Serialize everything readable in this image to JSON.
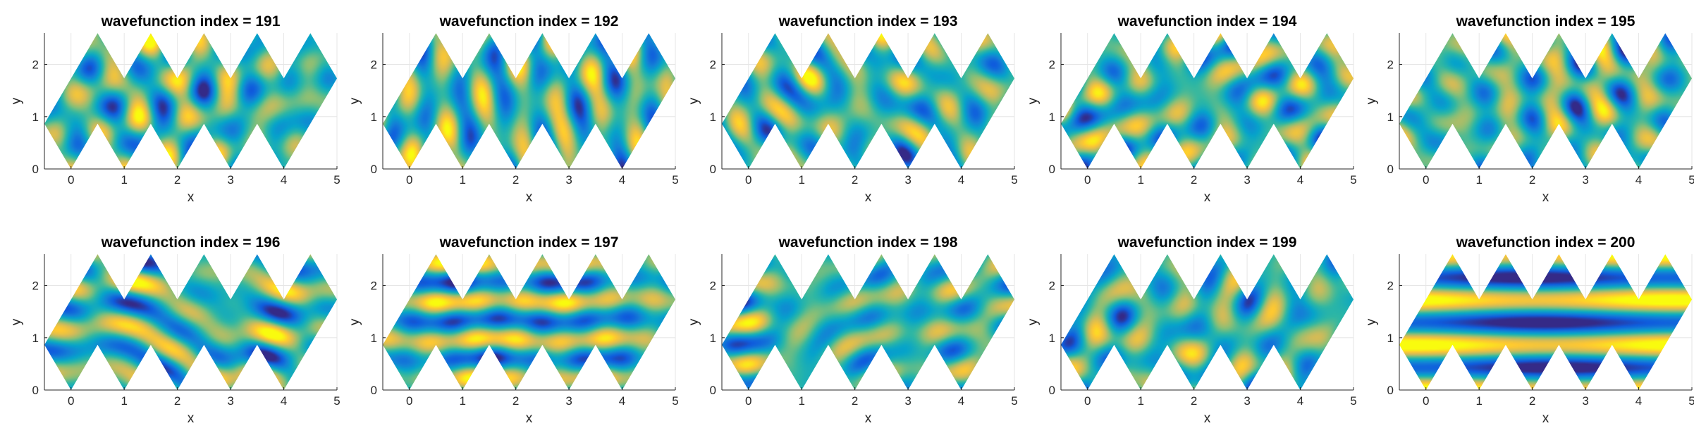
{
  "chart_data": {
    "type": "heatmap",
    "colormap": "parula",
    "colors": [
      "#352a87",
      "#0f5cdd",
      "#1481d6",
      "#06a4ca",
      "#2eb7a4",
      "#87bf77",
      "#d1bb59",
      "#fec832",
      "#f9fb0e"
    ],
    "grid": true,
    "xlabel": "x",
    "ylabel": "y",
    "xlim": [
      -0.5,
      5
    ],
    "ylim": [
      0,
      2.6
    ],
    "xticks": [
      "0",
      "1",
      "2",
      "3",
      "4",
      "5"
    ],
    "yticks": [
      "0",
      "1",
      "2"
    ],
    "domain_shape": "zigzag strip of 5 rhombi, width 5, height about 1.73",
    "panels": [
      {
        "title": "wavefunction index = 191",
        "index": 191
      },
      {
        "title": "wavefunction index = 192",
        "index": 192
      },
      {
        "title": "wavefunction index = 193",
        "index": 193
      },
      {
        "title": "wavefunction index = 194",
        "index": 194
      },
      {
        "title": "wavefunction index = 195",
        "index": 195
      },
      {
        "title": "wavefunction index = 196",
        "index": 196
      },
      {
        "title": "wavefunction index = 197",
        "index": 197
      },
      {
        "title": "wavefunction index = 198",
        "index": 198
      },
      {
        "title": "wavefunction index = 199",
        "index": 199
      },
      {
        "title": "wavefunction index = 200",
        "index": 200
      }
    ]
  }
}
